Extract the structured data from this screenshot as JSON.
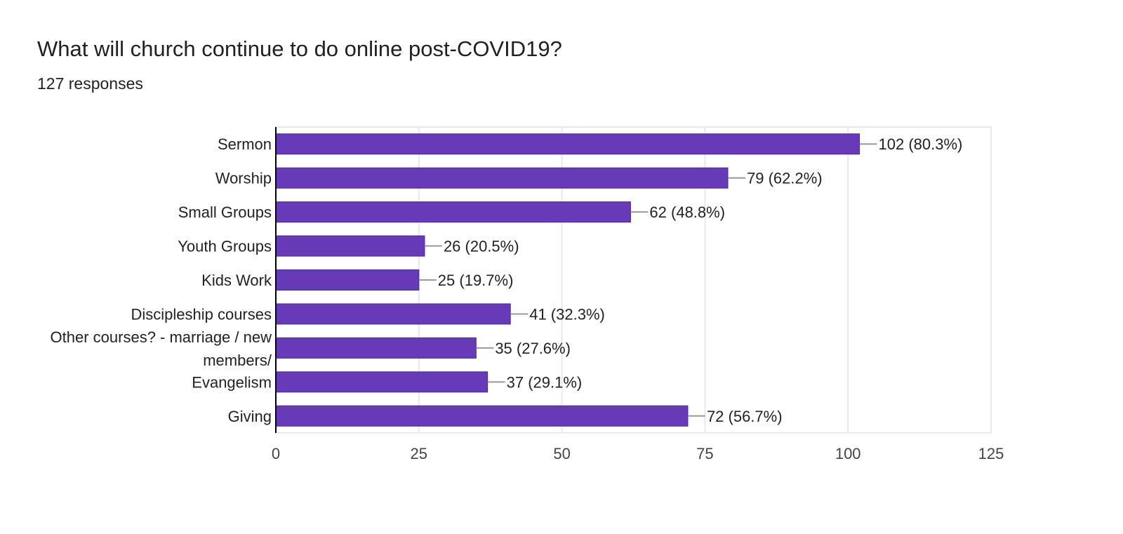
{
  "header": {
    "title": "What will church continue to do online post-COVID19?",
    "responses": "127 responses"
  },
  "colors": {
    "bar": "#673ab7",
    "bar_stroke": "#4a2a9a",
    "grid": "#e8e8e8",
    "axis": "#000000",
    "leader": "#999999"
  },
  "chart_data": {
    "type": "bar",
    "orientation": "horizontal",
    "categories": [
      "Sermon",
      "Worship",
      "Small Groups",
      "Youth Groups",
      "Kids Work",
      "Discipleship courses",
      "Other courses? - marriage / new members/",
      "Evangelism",
      "Giving"
    ],
    "category_label_lines": [
      [
        "Sermon"
      ],
      [
        "Worship"
      ],
      [
        "Small Groups"
      ],
      [
        "Youth Groups"
      ],
      [
        "Kids Work"
      ],
      [
        "Discipleship courses"
      ],
      [
        "Other courses? - marriage / new",
        "members/"
      ],
      [
        "Evangelism"
      ],
      [
        "Giving"
      ]
    ],
    "values": [
      102,
      79,
      62,
      26,
      25,
      41,
      35,
      37,
      72
    ],
    "data_labels": [
      "102 (80.3%)",
      "79 (62.2%)",
      "62 (48.8%)",
      "26 (20.5%)",
      "25 (19.7%)",
      "41 (32.3%)",
      "35 (27.6%)",
      "37 (29.1%)",
      "72 (56.7%)"
    ],
    "xlim": [
      0,
      125
    ],
    "xticks": [
      "0",
      "25",
      "50",
      "75",
      "100",
      "125"
    ],
    "grid": true
  }
}
